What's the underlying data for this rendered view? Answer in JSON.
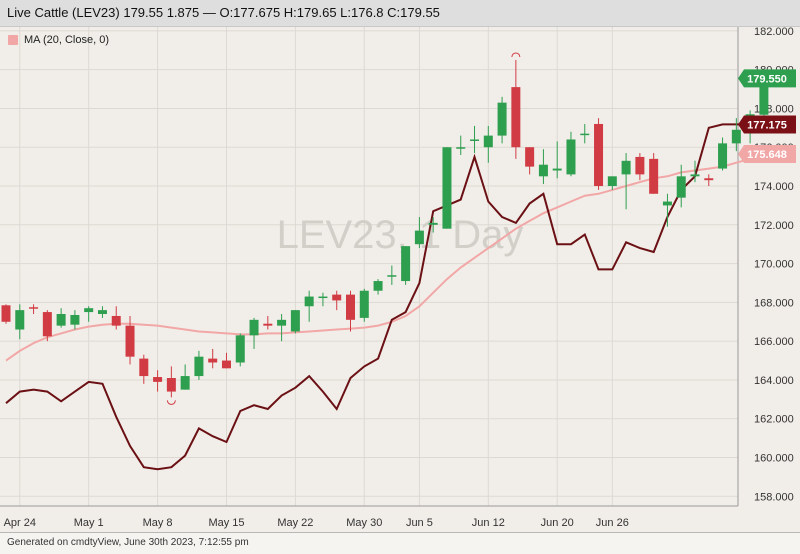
{
  "header": {
    "title": "Live Cattle (LEV23) 179.55 1.875 — O:177.675 H:179.65 L:176.8 C:179.55"
  },
  "legend": {
    "label": "MA (20, Close, 0)",
    "color": "#f2a7a7"
  },
  "watermark": "LEV23, 1 Day",
  "footer": {
    "text": "Generated on cmdtyView, June 30th 2023, 7:12:55 pm"
  },
  "colors": {
    "up": "#2e9e4f",
    "down": "#d13c44",
    "ma": "#f2a7a7",
    "line": "#6b1014",
    "grid": "#ddd9d2",
    "background": "#f1eee9"
  },
  "chart_data": {
    "type": "candlestick",
    "ylim": [
      157.5,
      182.2
    ],
    "yticks": [
      "158.000",
      "160.000",
      "162.000",
      "164.000",
      "166.000",
      "168.000",
      "170.000",
      "172.000",
      "174.000",
      "176.000",
      "178.000",
      "180.000",
      "182.000"
    ],
    "xticks": [
      {
        "i": 1,
        "label": "Apr 24"
      },
      {
        "i": 6,
        "label": "May 1"
      },
      {
        "i": 11,
        "label": "May 8"
      },
      {
        "i": 16,
        "label": "May 15"
      },
      {
        "i": 21,
        "label": "May 22"
      },
      {
        "i": 26,
        "label": "May 30"
      },
      {
        "i": 30,
        "label": "Jun 5"
      },
      {
        "i": 35,
        "label": "Jun 12"
      },
      {
        "i": 40,
        "label": "Jun 20"
      },
      {
        "i": 44,
        "label": "Jun 26"
      }
    ],
    "candles": [
      [
        167.85,
        167.9,
        166.9,
        167.0
      ],
      [
        166.6,
        167.9,
        166.1,
        167.6
      ],
      [
        167.75,
        167.9,
        167.4,
        167.7
      ],
      [
        167.5,
        167.6,
        166.0,
        166.25
      ],
      [
        166.8,
        167.7,
        166.7,
        167.4
      ],
      [
        166.85,
        167.6,
        166.6,
        167.35
      ],
      [
        167.5,
        167.8,
        167.0,
        167.7
      ],
      [
        167.4,
        167.8,
        167.2,
        167.6
      ],
      [
        167.3,
        167.8,
        166.6,
        166.8
      ],
      [
        166.8,
        167.3,
        164.8,
        165.2
      ],
      [
        165.1,
        165.3,
        163.8,
        164.2
      ],
      [
        164.15,
        164.5,
        163.4,
        163.9
      ],
      [
        164.1,
        164.7,
        163.1,
        163.4
      ],
      [
        163.5,
        164.8,
        163.5,
        164.2
      ],
      [
        164.2,
        165.5,
        164.0,
        165.2
      ],
      [
        165.1,
        165.6,
        164.6,
        164.9
      ],
      [
        165.0,
        165.4,
        164.6,
        164.6
      ],
      [
        164.9,
        166.4,
        164.7,
        166.3
      ],
      [
        166.3,
        167.2,
        165.6,
        167.1
      ],
      [
        166.9,
        167.3,
        166.6,
        166.8
      ],
      [
        166.8,
        167.4,
        166.0,
        167.1
      ],
      [
        166.5,
        167.6,
        166.4,
        167.6
      ],
      [
        167.8,
        168.6,
        167.0,
        168.3
      ],
      [
        168.3,
        168.5,
        167.8,
        168.3
      ],
      [
        168.4,
        168.6,
        167.6,
        168.1
      ],
      [
        168.4,
        168.6,
        166.5,
        167.1
      ],
      [
        167.2,
        168.7,
        167.0,
        168.6
      ],
      [
        168.6,
        169.2,
        168.4,
        169.1
      ],
      [
        169.4,
        169.9,
        168.9,
        169.4
      ],
      [
        169.1,
        170.9,
        168.9,
        170.9
      ],
      [
        171.0,
        172.4,
        170.8,
        171.7
      ],
      [
        172.0,
        172.4,
        171.6,
        172.1
      ],
      [
        171.8,
        176.0,
        171.8,
        176.0
      ],
      [
        176.0,
        176.6,
        175.6,
        176.0
      ],
      [
        176.35,
        177.1,
        175.7,
        176.4
      ],
      [
        176.0,
        177.1,
        175.2,
        176.6
      ],
      [
        176.6,
        178.6,
        176.2,
        178.3
      ],
      [
        179.1,
        180.5,
        175.4,
        176.0
      ],
      [
        176.0,
        176.0,
        174.6,
        175.0
      ],
      [
        174.5,
        175.9,
        174.1,
        175.1
      ],
      [
        174.8,
        176.3,
        174.4,
        174.9
      ],
      [
        174.6,
        176.8,
        174.5,
        176.4
      ],
      [
        176.7,
        177.2,
        176.2,
        176.7
      ],
      [
        177.2,
        177.5,
        173.8,
        174.0
      ],
      [
        174.0,
        174.5,
        173.8,
        174.5
      ],
      [
        174.6,
        175.7,
        172.8,
        175.3
      ],
      [
        175.5,
        175.7,
        174.3,
        174.6
      ],
      [
        175.4,
        175.7,
        173.6,
        173.6
      ],
      [
        173.0,
        173.6,
        171.9,
        173.2
      ],
      [
        173.4,
        175.1,
        172.9,
        174.5
      ],
      [
        174.5,
        175.3,
        174.2,
        174.6
      ],
      [
        174.4,
        174.6,
        174.0,
        174.3
      ],
      [
        174.9,
        176.5,
        174.8,
        176.2
      ],
      [
        176.2,
        177.5,
        175.8,
        176.9
      ],
      [
        176.8,
        177.9,
        176.2,
        177.7
      ],
      [
        177.675,
        179.65,
        176.8,
        179.55
      ]
    ],
    "ma": [
      165.0,
      165.5,
      165.9,
      166.2,
      166.4,
      166.6,
      166.75,
      166.85,
      166.9,
      166.9,
      166.85,
      166.8,
      166.7,
      166.6,
      166.5,
      166.45,
      166.4,
      166.35,
      166.35,
      166.4,
      166.4,
      166.45,
      166.5,
      166.55,
      166.6,
      166.65,
      166.7,
      166.8,
      167.0,
      167.3,
      167.8,
      168.5,
      169.2,
      169.8,
      170.3,
      170.8,
      171.3,
      171.8,
      172.2,
      172.6,
      172.9,
      173.2,
      173.5,
      173.6,
      173.8,
      174.0,
      174.2,
      174.4,
      174.5,
      174.7,
      174.8,
      174.9,
      175.0,
      175.2,
      175.4,
      175.648
    ],
    "line": [
      162.8,
      163.4,
      163.5,
      163.4,
      162.9,
      163.4,
      163.9,
      163.8,
      162.1,
      160.6,
      159.5,
      159.4,
      159.5,
      160.1,
      161.5,
      161.1,
      160.8,
      162.4,
      162.7,
      162.5,
      163.2,
      163.6,
      164.2,
      163.4,
      162.5,
      164.1,
      164.7,
      165.1,
      167.1,
      167.5,
      169.0,
      172.7,
      173.0,
      173.3,
      175.5,
      173.2,
      172.4,
      172.1,
      173.1,
      173.6,
      171.0,
      171.0,
      171.5,
      169.7,
      169.7,
      171.1,
      170.8,
      170.6,
      172.4,
      173.8,
      174.5,
      177.0,
      177.175,
      177.175,
      177.175,
      177.175
    ],
    "current_labels": [
      {
        "label": "179.550",
        "value": 179.55,
        "color": "#2e9e4f"
      },
      {
        "label": "177.175",
        "value": 177.175,
        "color": "#7a1016"
      },
      {
        "label": "175.648",
        "value": 175.648,
        "color": "#f2a7a7"
      }
    ]
  }
}
